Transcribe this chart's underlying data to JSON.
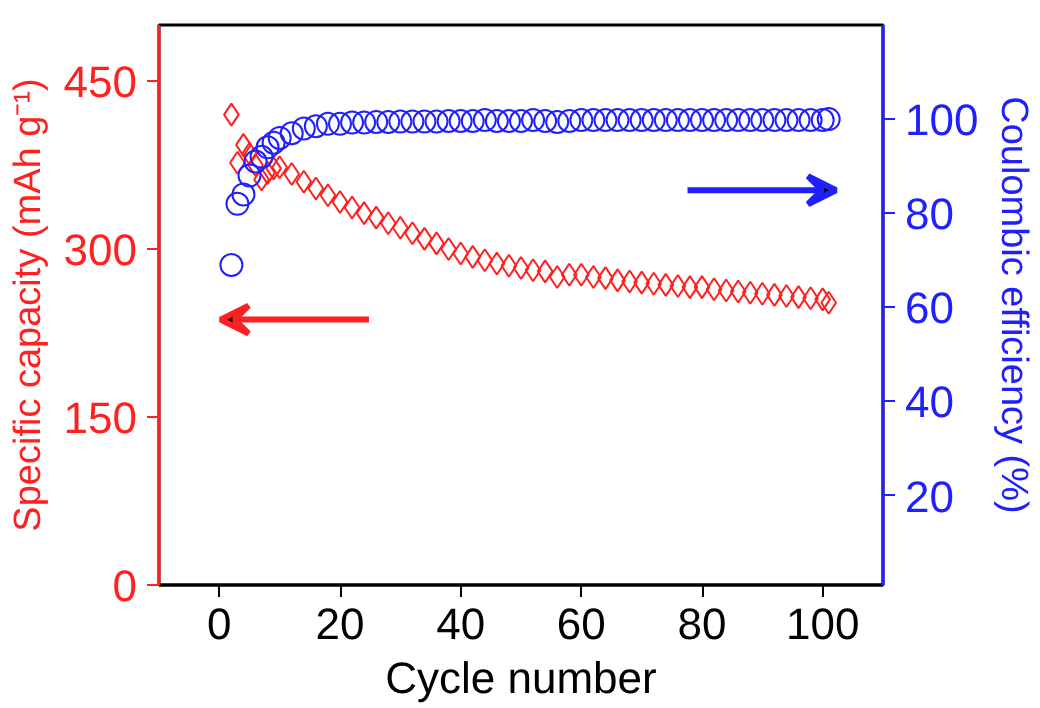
{
  "chart_data": {
    "type": "scatter",
    "xlabel": "Cycle number",
    "ylabel": "Specific capacity (mAh g⁻¹)",
    "y2label": "Coulombic efficiency (%)",
    "xlim": [
      -10,
      110
    ],
    "xticks": [
      0,
      20,
      40,
      60,
      80,
      100
    ],
    "ylim": [
      0,
      500
    ],
    "yticks": [
      0,
      150,
      300,
      450
    ],
    "y2lim": [
      1,
      120
    ],
    "y2ticks": [
      20,
      40,
      60,
      80,
      100
    ],
    "grid": false,
    "series": [
      {
        "color": "#ff2020",
        "marker": "diamond",
        "x": [
          2,
          3,
          4,
          5,
          6,
          7,
          8,
          9,
          10,
          12,
          14,
          16,
          18,
          20,
          22,
          24,
          26,
          28,
          30,
          32,
          34,
          36,
          38,
          40,
          42,
          44,
          46,
          48,
          50,
          52,
          54,
          56,
          58,
          60,
          62,
          64,
          66,
          68,
          70,
          72,
          74,
          76,
          78,
          80,
          82,
          84,
          86,
          88,
          90,
          92,
          94,
          96,
          98,
          100,
          101
        ],
        "values": [
          420,
          377,
          393,
          385,
          375,
          362,
          368,
          372,
          373,
          367,
          360,
          354,
          348,
          342,
          337,
          332,
          328,
          323,
          319,
          314,
          309,
          305,
          300,
          296,
          293,
          290,
          287,
          285,
          283,
          281,
          280,
          275,
          277,
          277,
          275,
          274,
          272,
          271,
          270,
          269,
          268,
          267,
          266,
          266,
          264,
          263,
          262,
          261,
          260,
          259,
          258,
          257,
          256,
          255,
          252
        ]
      },
      {
        "color": "#2020ff",
        "marker": "circle",
        "axis": "y2",
        "x": [
          2,
          3,
          4,
          5,
          6,
          7,
          8,
          9,
          10,
          12,
          14,
          16,
          18,
          20,
          22,
          24,
          26,
          28,
          30,
          32,
          34,
          36,
          38,
          40,
          42,
          44,
          46,
          48,
          50,
          52,
          54,
          56,
          58,
          60,
          62,
          64,
          66,
          68,
          70,
          72,
          74,
          76,
          78,
          80,
          82,
          84,
          86,
          88,
          90,
          92,
          94,
          96,
          98,
          100,
          101
        ],
        "values": [
          69,
          82,
          84,
          88,
          91,
          92,
          94,
          95,
          96,
          97,
          98,
          98.5,
          99,
          99,
          99.3,
          99.3,
          99.4,
          99.4,
          99.5,
          99.5,
          99.5,
          99.5,
          99.6,
          99.6,
          99.6,
          99.8,
          99.6,
          99.6,
          99.6,
          99.8,
          99.6,
          99.4,
          99.6,
          99.8,
          99.8,
          99.8,
          99.8,
          99.8,
          99.8,
          99.8,
          99.8,
          99.8,
          99.8,
          99.8,
          99.8,
          99.8,
          99.8,
          99.8,
          99.8,
          99.8,
          99.8,
          99.8,
          99.8,
          99.8,
          100
        ]
      }
    ]
  }
}
